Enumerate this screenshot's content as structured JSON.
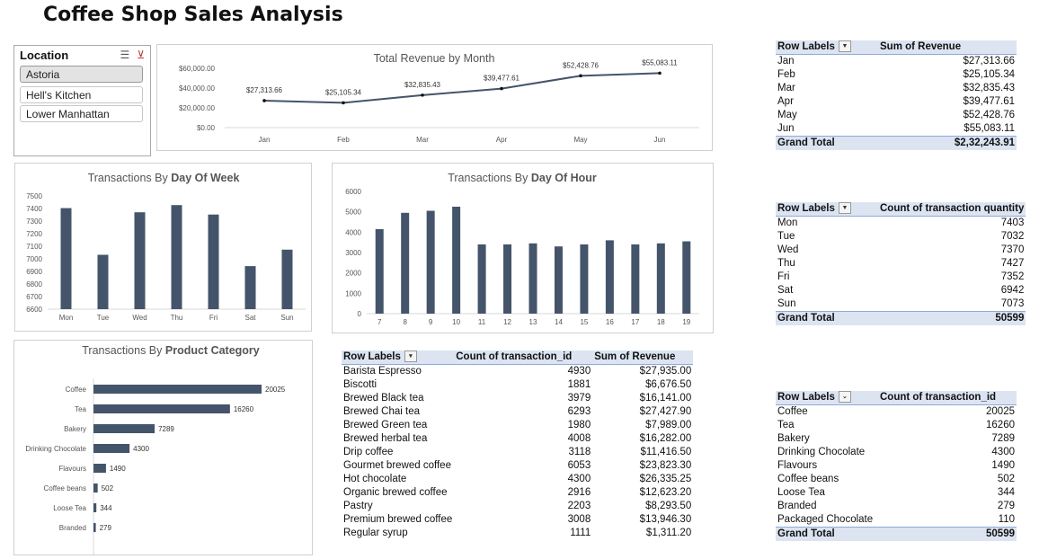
{
  "page_title": "Coffee Shop Sales Analysis",
  "slicer": {
    "header": "Location",
    "items": [
      {
        "label": "Astoria",
        "selected": true
      },
      {
        "label": "Hell's Kitchen",
        "selected": false
      },
      {
        "label": "Lower Manhattan",
        "selected": false
      }
    ],
    "icons": [
      "multi-select-icon",
      "clear-filter-icon"
    ]
  },
  "colors": {
    "bar": "#44546a",
    "line": "#44546a",
    "pivot_header": "#dce4f2"
  },
  "chart_data": [
    {
      "id": "revenue",
      "type": "line",
      "title": "Total Revenue by Month",
      "categories": [
        "Jan",
        "Feb",
        "Mar",
        "Apr",
        "May",
        "Jun"
      ],
      "values": [
        27313.66,
        25105.34,
        32835.43,
        39477.61,
        52428.76,
        55083.11
      ],
      "data_labels": [
        "$27,313.66",
        "$25,105.34",
        "$32,835.43",
        "$39,477.61",
        "$52,428.76",
        "$55,083.11"
      ],
      "y_ticks": [
        "$0.00",
        "$20,000.00",
        "$40,000.00",
        "$60,000.00"
      ],
      "ylim": [
        0,
        60000
      ],
      "grid": false
    },
    {
      "id": "dow",
      "type": "bar",
      "title_prefix": "Transactions By ",
      "title_bold": "Day Of Week",
      "categories": [
        "Mon",
        "Tue",
        "Wed",
        "Thu",
        "Fri",
        "Sat",
        "Sun"
      ],
      "values": [
        7403,
        7032,
        7370,
        7427,
        7352,
        6942,
        7073
      ],
      "y_ticks": [
        "6600",
        "6700",
        "6800",
        "6900",
        "7000",
        "7100",
        "7200",
        "7300",
        "7400",
        "7500"
      ],
      "ylim": [
        6600,
        7500
      ],
      "grid": false
    },
    {
      "id": "hour",
      "type": "bar",
      "title_prefix": "Transactions By ",
      "title_bold": "Day Of Hour",
      "categories": [
        "7",
        "8",
        "9",
        "10",
        "11",
        "12",
        "13",
        "14",
        "15",
        "16",
        "17",
        "18",
        "19"
      ],
      "values": [
        4150,
        4950,
        5050,
        5250,
        3400,
        3400,
        3450,
        3300,
        3400,
        3600,
        3400,
        3450,
        3550
      ],
      "y_ticks": [
        "0",
        "1000",
        "2000",
        "3000",
        "4000",
        "5000",
        "6000"
      ],
      "ylim": [
        0,
        6000
      ],
      "grid": false
    },
    {
      "id": "category",
      "type": "bar",
      "orientation": "horizontal",
      "title_prefix": "Transactions By ",
      "title_bold": "Product Category",
      "categories": [
        "Coffee",
        "Tea",
        "Bakery",
        "Drinking Chocolate",
        "Flavours",
        "Coffee beans",
        "Loose Tea",
        "Branded"
      ],
      "values": [
        20025,
        16260,
        7289,
        4300,
        1490,
        502,
        344,
        279
      ],
      "xlim": [
        0,
        20025
      ],
      "grid": false
    }
  ],
  "pivot_month": {
    "headers": [
      "Row Labels",
      "Sum of Revenue"
    ],
    "rows": [
      [
        "Jan",
        "$27,313.66"
      ],
      [
        "Feb",
        "$25,105.34"
      ],
      [
        "Mar",
        "$32,835.43"
      ],
      [
        "Apr",
        "$39,477.61"
      ],
      [
        "May",
        "$52,428.76"
      ],
      [
        "Jun",
        "$55,083.11"
      ]
    ],
    "total": [
      "Grand Total",
      "$2,32,243.91"
    ]
  },
  "pivot_day": {
    "headers": [
      "Row Labels",
      "Count of transaction quantity"
    ],
    "rows": [
      [
        "Mon",
        "7403"
      ],
      [
        "Tue",
        "7032"
      ],
      [
        "Wed",
        "7370"
      ],
      [
        "Thu",
        "7427"
      ],
      [
        "Fri",
        "7352"
      ],
      [
        "Sat",
        "6942"
      ],
      [
        "Sun",
        "7073"
      ]
    ],
    "total": [
      "Grand Total",
      "50599"
    ]
  },
  "pivot_category": {
    "headers": [
      "Row Labels",
      "Count of transaction_id"
    ],
    "rows": [
      [
        "Coffee",
        "20025"
      ],
      [
        "Tea",
        "16260"
      ],
      [
        "Bakery",
        "7289"
      ],
      [
        "Drinking Chocolate",
        "4300"
      ],
      [
        "Flavours",
        "1490"
      ],
      [
        "Coffee beans",
        "502"
      ],
      [
        "Loose Tea",
        "344"
      ],
      [
        "Branded",
        "279"
      ],
      [
        "Packaged Chocolate",
        "110"
      ]
    ],
    "total": [
      "Grand Total",
      "50599"
    ]
  },
  "pivot_product": {
    "headers": [
      "Row Labels",
      "Count of transaction_id",
      "Sum of Revenue"
    ],
    "rows": [
      [
        "Barista Espresso",
        "4930",
        "$27,935.00"
      ],
      [
        "Biscotti",
        "1881",
        "$6,676.50"
      ],
      [
        "Brewed Black tea",
        "3979",
        "$16,141.00"
      ],
      [
        "Brewed Chai tea",
        "6293",
        "$27,427.90"
      ],
      [
        "Brewed Green tea",
        "1980",
        "$7,989.00"
      ],
      [
        "Brewed herbal tea",
        "4008",
        "$16,282.00"
      ],
      [
        "Drip coffee",
        "3118",
        "$11,416.50"
      ],
      [
        "Gourmet brewed coffee",
        "6053",
        "$23,823.30"
      ],
      [
        "Hot chocolate",
        "4300",
        "$26,335.25"
      ],
      [
        "Organic brewed coffee",
        "2916",
        "$12,623.20"
      ],
      [
        "Pastry",
        "2203",
        "$8,293.50"
      ],
      [
        "Premium brewed coffee",
        "3008",
        "$13,946.30"
      ],
      [
        "Regular syrup",
        "1111",
        "$1,311.20"
      ]
    ]
  }
}
